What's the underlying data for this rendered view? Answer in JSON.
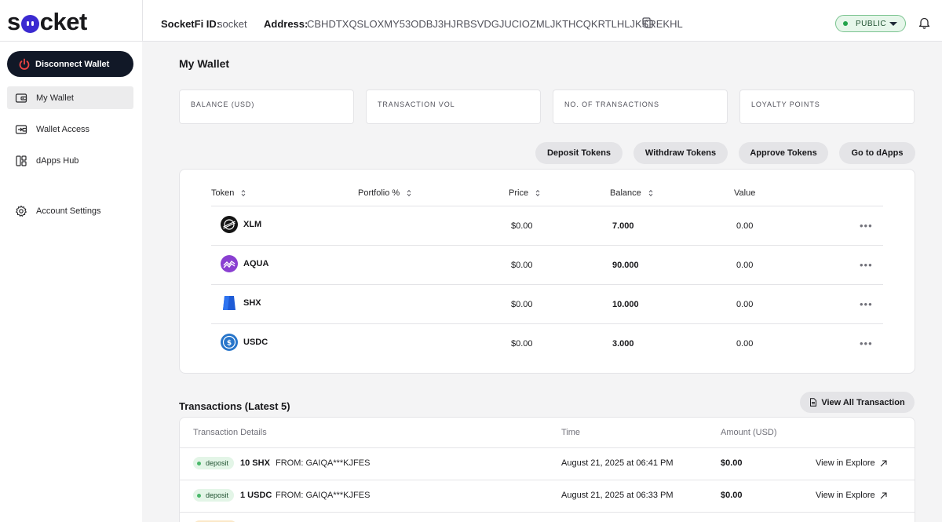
{
  "header": {
    "logo_text": "socket",
    "socketfi_label": "SocketFi ID:",
    "socketfi_value": "socket",
    "address_label": "Address:",
    "address_value": "CBHDTXQSLOXMY53ODBJ3HJRBSVDGJUCIOZMLJKTHCQKRTLHLJKSREKHL",
    "network": "PUBLIC"
  },
  "sidebar": {
    "disconnect_label": "Disconnect Wallet",
    "items": [
      {
        "label": "My Wallet",
        "icon": "wallet-icon",
        "active": true
      },
      {
        "label": "Wallet Access",
        "icon": "wallet-access-icon"
      },
      {
        "label": "dApps Hub",
        "icon": "dapps-icon"
      },
      {
        "label": "Account Settings",
        "icon": "gear-icon"
      }
    ]
  },
  "main": {
    "title": "My Wallet",
    "stats": [
      {
        "label": "BALANCE (USD)"
      },
      {
        "label": "TRANSACTION VOL"
      },
      {
        "label": "NO. OF TRANSACTIONS"
      },
      {
        "label": "LOYALTY POINTS"
      }
    ],
    "actions": [
      "Deposit Tokens",
      "Withdraw Tokens",
      "Approve Tokens",
      "Go to dApps"
    ],
    "table": {
      "columns": [
        "Token",
        "Portfolio %",
        "Price",
        "Balance",
        "Value"
      ],
      "rows": [
        {
          "symbol": "XLM",
          "price": "$0.00",
          "balance": "7.000",
          "value": "0.00",
          "more": "•••"
        },
        {
          "symbol": "AQUA",
          "price": "$0.00",
          "balance": "90.000",
          "value": "0.00",
          "more": "•••"
        },
        {
          "symbol": "SHX",
          "price": "$0.00",
          "balance": "10.000",
          "value": "0.00",
          "more": "•••"
        },
        {
          "symbol": "USDC",
          "price": "$0.00",
          "balance": "3.000",
          "value": "0.00",
          "more": "•••"
        }
      ]
    },
    "transactions": {
      "title": "Transactions (Latest 5)",
      "view_all_label": "View All Transaction",
      "columns": [
        "Transaction Details",
        "Time",
        "Amount (USD)"
      ],
      "rows": [
        {
          "type": "deposit",
          "amount": "10 SHX",
          "from": "FROM: GAIQA***KJFES",
          "time": "August 21, 2025 at 06:41 PM",
          "usd": "$0.00",
          "link": "View in Explore"
        },
        {
          "type": "deposit",
          "amount": "1 USDC",
          "from": "FROM: GAIQA***KJFES",
          "time": "August 21, 2025 at 06:33 PM",
          "usd": "$0.00",
          "link": "View in Explore"
        }
      ]
    }
  },
  "colors": {
    "accent": "#3b2ad1",
    "disconnect_bg": "#111827",
    "status_green": "#22a34a"
  }
}
